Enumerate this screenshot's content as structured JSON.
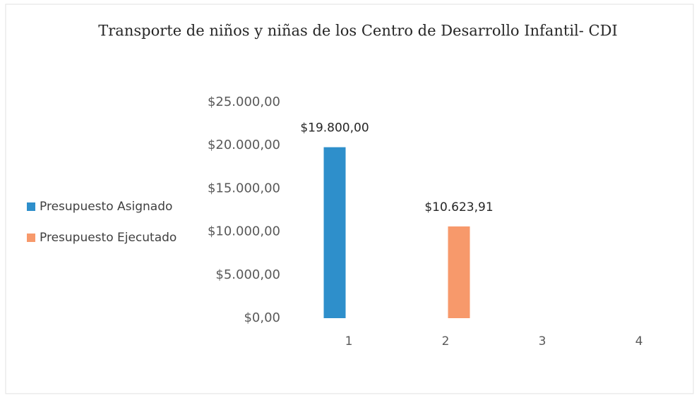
{
  "chart_data": {
    "type": "bar",
    "title": "Transporte de niños y niñas de los Centro de Desarrollo Infantil- CDI",
    "categories": [
      "1",
      "2",
      "3",
      "4"
    ],
    "series": [
      {
        "name": "Presupuesto Asignado",
        "color": "#2e8fcb",
        "values": [
          19800,
          null,
          null,
          null
        ],
        "value_labels": [
          "$19.800,00",
          null,
          null,
          null
        ]
      },
      {
        "name": "Presupuesto Ejecutado",
        "color": "#f7996b",
        "values": [
          null,
          10623.91,
          null,
          null
        ],
        "value_labels": [
          null,
          "$10.623,91",
          null,
          null
        ]
      }
    ],
    "ylim": [
      0,
      25000
    ],
    "yticks": [
      {
        "value": 0,
        "label": "$0,00"
      },
      {
        "value": 5000,
        "label": "$5.000,00"
      },
      {
        "value": 10000,
        "label": "$10.000,00"
      },
      {
        "value": 15000,
        "label": "$15.000,00"
      },
      {
        "value": 20000,
        "label": "$20.000,00"
      },
      {
        "value": 25000,
        "label": "$25.000,00"
      }
    ],
    "grid": false,
    "legend": "left"
  }
}
